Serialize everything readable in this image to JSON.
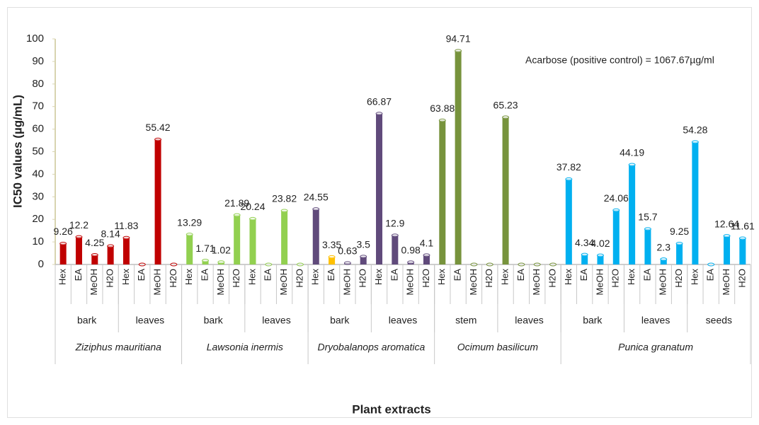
{
  "chart_data": {
    "type": "bar",
    "y_label": "IC50 values (µg/mL)",
    "x_label": "Plant extracts",
    "annotation": "Acarbose (positive control) = 1067.67µg/ml",
    "ylim": [
      0,
      100
    ],
    "yticks": [
      0,
      10,
      20,
      30,
      40,
      50,
      60,
      70,
      80,
      90,
      100
    ],
    "plants": [
      {
        "name": "Ziziphus mauritiana",
        "parts": [
          {
            "name": "bark",
            "categories": [
              "Hex",
              "EA",
              "MeOH",
              "H2O"
            ],
            "values": [
              9.26,
              12.2,
              4.25,
              8.14
            ],
            "colors": [
              "#c00000",
              "#c00000",
              "#c00000",
              "#c00000"
            ]
          },
          {
            "name": "leaves",
            "categories": [
              "Hex",
              "EA",
              "MeOH",
              "H2O"
            ],
            "values": [
              11.83,
              0,
              55.42,
              0
            ],
            "colors": [
              "#c00000",
              "#c00000",
              "#c00000",
              "#c00000"
            ]
          }
        ]
      },
      {
        "name": "Lawsonia inermis",
        "parts": [
          {
            "name": "bark",
            "categories": [
              "Hex",
              "EA",
              "MeOH",
              "H2O"
            ],
            "values": [
              13.29,
              1.71,
              1.02,
              21.89
            ],
            "colors": [
              "#92d050",
              "#92d050",
              "#92d050",
              "#92d050"
            ]
          },
          {
            "name": "leaves",
            "categories": [
              "Hex",
              "EA",
              "MeOH",
              "H2O"
            ],
            "values": [
              20.24,
              0,
              23.82,
              0
            ],
            "colors": [
              "#92d050",
              "#92d050",
              "#92d050",
              "#92d050"
            ]
          }
        ]
      },
      {
        "name": "Dryobalanops aromatica",
        "parts": [
          {
            "name": "bark",
            "categories": [
              "Hex",
              "EA",
              "MeOH",
              "H2O"
            ],
            "values": [
              24.55,
              3.35,
              0.63,
              3.5
            ],
            "colors": [
              "#604a7b",
              "#ffc000",
              "#604a7b",
              "#604a7b"
            ]
          },
          {
            "name": "leaves",
            "categories": [
              "Hex",
              "EA",
              "MeOH",
              "H2O"
            ],
            "values": [
              66.87,
              12.9,
              0.98,
              4.1
            ],
            "colors": [
              "#604a7b",
              "#604a7b",
              "#604a7b",
              "#604a7b"
            ]
          }
        ]
      },
      {
        "name": "Ocimum basilicum",
        "parts": [
          {
            "name": "stem",
            "categories": [
              "Hex",
              "EA",
              "MeOH",
              "H2O"
            ],
            "values": [
              63.88,
              94.71,
              0,
              0
            ],
            "colors": [
              "#77933c",
              "#77933c",
              "#77933c",
              "#77933c"
            ]
          },
          {
            "name": "leaves",
            "categories": [
              "Hex",
              "EA",
              "MeOH",
              "H2O"
            ],
            "values": [
              65.23,
              0,
              0,
              0
            ],
            "colors": [
              "#77933c",
              "#77933c",
              "#77933c",
              "#77933c"
            ]
          }
        ]
      },
      {
        "name": "Punica granatum",
        "parts": [
          {
            "name": "bark",
            "categories": [
              "Hex",
              "EA",
              "MeOH",
              "H2O"
            ],
            "values": [
              37.82,
              4.34,
              4.02,
              24.06
            ],
            "colors": [
              "#00b0f0",
              "#00b0f0",
              "#00b0f0",
              "#00b0f0"
            ]
          },
          {
            "name": "leaves",
            "categories": [
              "Hex",
              "EA",
              "MeOH",
              "H2O"
            ],
            "values": [
              44.19,
              15.7,
              2.3,
              9.25
            ],
            "colors": [
              "#00b0f0",
              "#00b0f0",
              "#00b0f0",
              "#00b0f0"
            ]
          },
          {
            "name": "seeds",
            "categories": [
              "Hex",
              "EA",
              "MeOH",
              "H2O"
            ],
            "values": [
              54.28,
              0,
              12.64,
              11.61
            ],
            "colors": [
              "#00b0f0",
              "#00b0f0",
              "#00b0f0",
              "#00b0f0"
            ]
          }
        ]
      }
    ]
  }
}
